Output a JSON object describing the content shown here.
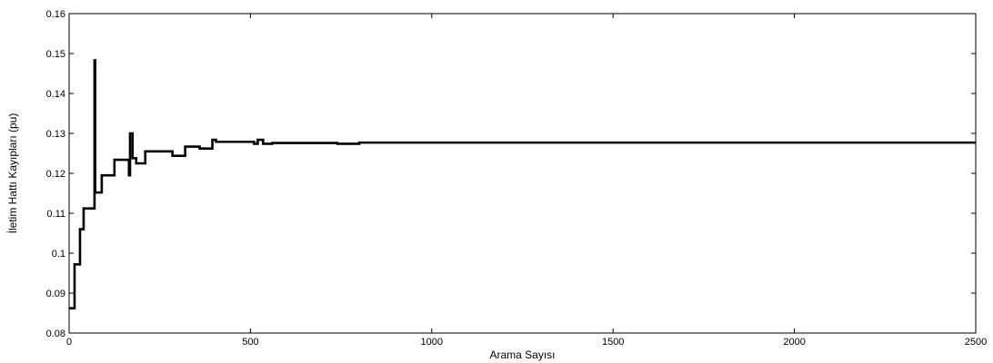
{
  "chart_data": {
    "type": "line",
    "title": "",
    "xlabel": "Arama Sayısı",
    "ylabel": "İletim Hattı Kayıpları (pu)",
    "xlim": [
      0,
      2500
    ],
    "ylim": [
      0.08,
      0.16
    ],
    "xticks": [
      0,
      500,
      1000,
      1500,
      2000,
      2500
    ],
    "xtick_labels": [
      "0",
      "500",
      "1000",
      "1500",
      "2000",
      "2500"
    ],
    "yticks": [
      0.08,
      0.09,
      0.1,
      0.11,
      0.12,
      0.13,
      0.14,
      0.15,
      0.16
    ],
    "ytick_labels": [
      "0.08",
      "0.09",
      "0.1",
      "0.11",
      "0.12",
      "0.13",
      "0.14",
      "0.15",
      "0.16"
    ],
    "grid": false,
    "legend": "none",
    "line_color": "#000000",
    "step": true,
    "series": [
      {
        "x": [
          0,
          15,
          30,
          40,
          55,
          70,
          72,
          75,
          90,
          125,
          165,
          168,
          175,
          185,
          200,
          210,
          255,
          285,
          320,
          360,
          395,
          405,
          420,
          470,
          510,
          520,
          535,
          560,
          600,
          700,
          740,
          800,
          900,
          1000,
          1500,
          2000,
          2500
        ],
        "y": [
          0.0862,
          0.0972,
          0.106,
          0.1112,
          0.1112,
          0.1483,
          0.1152,
          0.1152,
          0.1195,
          0.1234,
          0.1195,
          0.13,
          0.1238,
          0.1225,
          0.1225,
          0.1255,
          0.1255,
          0.1244,
          0.1267,
          0.1262,
          0.1284,
          0.1279,
          0.1279,
          0.1279,
          0.1274,
          0.1284,
          0.1274,
          0.1276,
          0.1276,
          0.1276,
          0.1274,
          0.1277,
          0.1277,
          0.1277,
          0.1277,
          0.1277,
          0.1277
        ]
      }
    ]
  }
}
